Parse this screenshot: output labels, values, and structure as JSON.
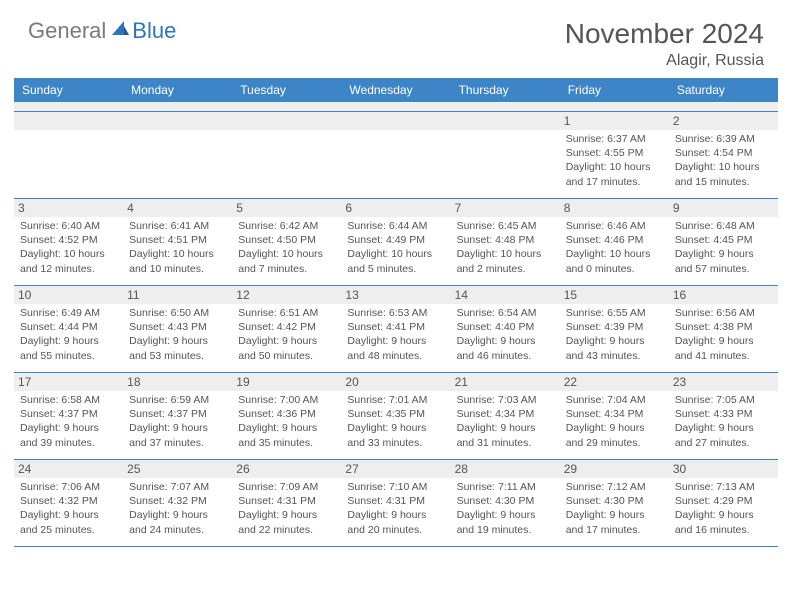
{
  "brand": {
    "text1": "General",
    "text2": "Blue"
  },
  "title": "November 2024",
  "location": "Alagir, Russia",
  "colors": {
    "header_bg": "#3d85c6",
    "header_text": "#ffffff",
    "daynum_bg": "#eeeeee",
    "border": "#3d85c6",
    "body_text": "#555555",
    "brand_gray": "#7a7a7a",
    "brand_blue": "#2d74bb"
  },
  "day_headers": [
    "Sunday",
    "Monday",
    "Tuesday",
    "Wednesday",
    "Thursday",
    "Friday",
    "Saturday"
  ],
  "weeks": [
    [
      null,
      null,
      null,
      null,
      null,
      {
        "n": "1",
        "sr": "Sunrise: 6:37 AM",
        "ss": "Sunset: 4:55 PM",
        "d1": "Daylight: 10 hours",
        "d2": "and 17 minutes."
      },
      {
        "n": "2",
        "sr": "Sunrise: 6:39 AM",
        "ss": "Sunset: 4:54 PM",
        "d1": "Daylight: 10 hours",
        "d2": "and 15 minutes."
      }
    ],
    [
      {
        "n": "3",
        "sr": "Sunrise: 6:40 AM",
        "ss": "Sunset: 4:52 PM",
        "d1": "Daylight: 10 hours",
        "d2": "and 12 minutes."
      },
      {
        "n": "4",
        "sr": "Sunrise: 6:41 AM",
        "ss": "Sunset: 4:51 PM",
        "d1": "Daylight: 10 hours",
        "d2": "and 10 minutes."
      },
      {
        "n": "5",
        "sr": "Sunrise: 6:42 AM",
        "ss": "Sunset: 4:50 PM",
        "d1": "Daylight: 10 hours",
        "d2": "and 7 minutes."
      },
      {
        "n": "6",
        "sr": "Sunrise: 6:44 AM",
        "ss": "Sunset: 4:49 PM",
        "d1": "Daylight: 10 hours",
        "d2": "and 5 minutes."
      },
      {
        "n": "7",
        "sr": "Sunrise: 6:45 AM",
        "ss": "Sunset: 4:48 PM",
        "d1": "Daylight: 10 hours",
        "d2": "and 2 minutes."
      },
      {
        "n": "8",
        "sr": "Sunrise: 6:46 AM",
        "ss": "Sunset: 4:46 PM",
        "d1": "Daylight: 10 hours",
        "d2": "and 0 minutes."
      },
      {
        "n": "9",
        "sr": "Sunrise: 6:48 AM",
        "ss": "Sunset: 4:45 PM",
        "d1": "Daylight: 9 hours",
        "d2": "and 57 minutes."
      }
    ],
    [
      {
        "n": "10",
        "sr": "Sunrise: 6:49 AM",
        "ss": "Sunset: 4:44 PM",
        "d1": "Daylight: 9 hours",
        "d2": "and 55 minutes."
      },
      {
        "n": "11",
        "sr": "Sunrise: 6:50 AM",
        "ss": "Sunset: 4:43 PM",
        "d1": "Daylight: 9 hours",
        "d2": "and 53 minutes."
      },
      {
        "n": "12",
        "sr": "Sunrise: 6:51 AM",
        "ss": "Sunset: 4:42 PM",
        "d1": "Daylight: 9 hours",
        "d2": "and 50 minutes."
      },
      {
        "n": "13",
        "sr": "Sunrise: 6:53 AM",
        "ss": "Sunset: 4:41 PM",
        "d1": "Daylight: 9 hours",
        "d2": "and 48 minutes."
      },
      {
        "n": "14",
        "sr": "Sunrise: 6:54 AM",
        "ss": "Sunset: 4:40 PM",
        "d1": "Daylight: 9 hours",
        "d2": "and 46 minutes."
      },
      {
        "n": "15",
        "sr": "Sunrise: 6:55 AM",
        "ss": "Sunset: 4:39 PM",
        "d1": "Daylight: 9 hours",
        "d2": "and 43 minutes."
      },
      {
        "n": "16",
        "sr": "Sunrise: 6:56 AM",
        "ss": "Sunset: 4:38 PM",
        "d1": "Daylight: 9 hours",
        "d2": "and 41 minutes."
      }
    ],
    [
      {
        "n": "17",
        "sr": "Sunrise: 6:58 AM",
        "ss": "Sunset: 4:37 PM",
        "d1": "Daylight: 9 hours",
        "d2": "and 39 minutes."
      },
      {
        "n": "18",
        "sr": "Sunrise: 6:59 AM",
        "ss": "Sunset: 4:37 PM",
        "d1": "Daylight: 9 hours",
        "d2": "and 37 minutes."
      },
      {
        "n": "19",
        "sr": "Sunrise: 7:00 AM",
        "ss": "Sunset: 4:36 PM",
        "d1": "Daylight: 9 hours",
        "d2": "and 35 minutes."
      },
      {
        "n": "20",
        "sr": "Sunrise: 7:01 AM",
        "ss": "Sunset: 4:35 PM",
        "d1": "Daylight: 9 hours",
        "d2": "and 33 minutes."
      },
      {
        "n": "21",
        "sr": "Sunrise: 7:03 AM",
        "ss": "Sunset: 4:34 PM",
        "d1": "Daylight: 9 hours",
        "d2": "and 31 minutes."
      },
      {
        "n": "22",
        "sr": "Sunrise: 7:04 AM",
        "ss": "Sunset: 4:34 PM",
        "d1": "Daylight: 9 hours",
        "d2": "and 29 minutes."
      },
      {
        "n": "23",
        "sr": "Sunrise: 7:05 AM",
        "ss": "Sunset: 4:33 PM",
        "d1": "Daylight: 9 hours",
        "d2": "and 27 minutes."
      }
    ],
    [
      {
        "n": "24",
        "sr": "Sunrise: 7:06 AM",
        "ss": "Sunset: 4:32 PM",
        "d1": "Daylight: 9 hours",
        "d2": "and 25 minutes."
      },
      {
        "n": "25",
        "sr": "Sunrise: 7:07 AM",
        "ss": "Sunset: 4:32 PM",
        "d1": "Daylight: 9 hours",
        "d2": "and 24 minutes."
      },
      {
        "n": "26",
        "sr": "Sunrise: 7:09 AM",
        "ss": "Sunset: 4:31 PM",
        "d1": "Daylight: 9 hours",
        "d2": "and 22 minutes."
      },
      {
        "n": "27",
        "sr": "Sunrise: 7:10 AM",
        "ss": "Sunset: 4:31 PM",
        "d1": "Daylight: 9 hours",
        "d2": "and 20 minutes."
      },
      {
        "n": "28",
        "sr": "Sunrise: 7:11 AM",
        "ss": "Sunset: 4:30 PM",
        "d1": "Daylight: 9 hours",
        "d2": "and 19 minutes."
      },
      {
        "n": "29",
        "sr": "Sunrise: 7:12 AM",
        "ss": "Sunset: 4:30 PM",
        "d1": "Daylight: 9 hours",
        "d2": "and 17 minutes."
      },
      {
        "n": "30",
        "sr": "Sunrise: 7:13 AM",
        "ss": "Sunset: 4:29 PM",
        "d1": "Daylight: 9 hours",
        "d2": "and 16 minutes."
      }
    ]
  ]
}
